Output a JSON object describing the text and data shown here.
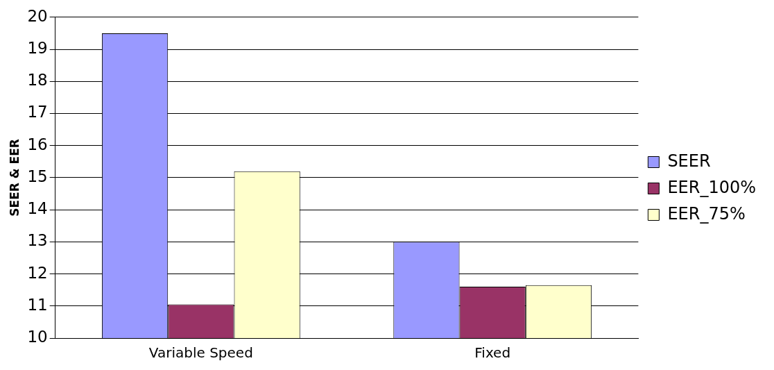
{
  "chart_data": {
    "type": "bar",
    "ylabel": "SEER & EER",
    "categories": [
      "Variable Speed",
      "Fixed"
    ],
    "series": [
      {
        "name": "SEER",
        "color": "#9999ff",
        "values": [
          19.5,
          13.0
        ]
      },
      {
        "name": "EER_100%",
        "color": "#993366",
        "values": [
          11.05,
          11.6
        ]
      },
      {
        "name": "EER_75%",
        "color": "#ffffcc",
        "values": [
          15.2,
          11.65
        ]
      }
    ],
    "ylim": [
      10,
      20
    ],
    "yticks": [
      10,
      11,
      12,
      13,
      14,
      15,
      16,
      17,
      18,
      19,
      20
    ],
    "grid": "y",
    "legend": "right"
  }
}
